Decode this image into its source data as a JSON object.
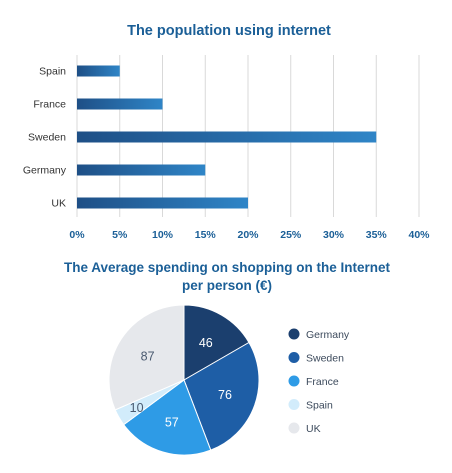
{
  "colors": {
    "title": "#1b5f97",
    "tick_x": "#1b5f97",
    "tick_y": "#333333",
    "grid": "#d9d9d9",
    "bar_start": "#1e4f86",
    "bar_end": "#2f85c7",
    "pie_label_light": "#ffffff",
    "pie_label_dark": "#4a5a70",
    "legend_text": "#3c4a5c"
  },
  "chart_data": [
    {
      "type": "bar",
      "orientation": "horizontal",
      "title": "The population using internet",
      "categories": [
        "Spain",
        "France",
        "Sweden",
        "Germany",
        "UK"
      ],
      "values": [
        5,
        10,
        35,
        15,
        20
      ],
      "xlim": [
        0,
        40
      ],
      "xticks": [
        0,
        5,
        10,
        15,
        20,
        25,
        30,
        35,
        40
      ],
      "tick_suffix": "%",
      "grid": "vertical",
      "legend": "none"
    },
    {
      "type": "pie",
      "title": "The Average spending on shopping on the Internet",
      "title_line2": "per person (€)",
      "slices": [
        {
          "label": "Germany",
          "value": 46,
          "color": "#1b3f6e"
        },
        {
          "label": "Sweden",
          "value": 76,
          "color": "#1e5ea6"
        },
        {
          "label": "France",
          "value": 57,
          "color": "#2e9be6"
        },
        {
          "label": "Spain",
          "value": 10,
          "color": "#d2ecfb"
        },
        {
          "label": "UK",
          "value": 87,
          "color": "#e6e8ec"
        }
      ],
      "legend": "right"
    }
  ]
}
